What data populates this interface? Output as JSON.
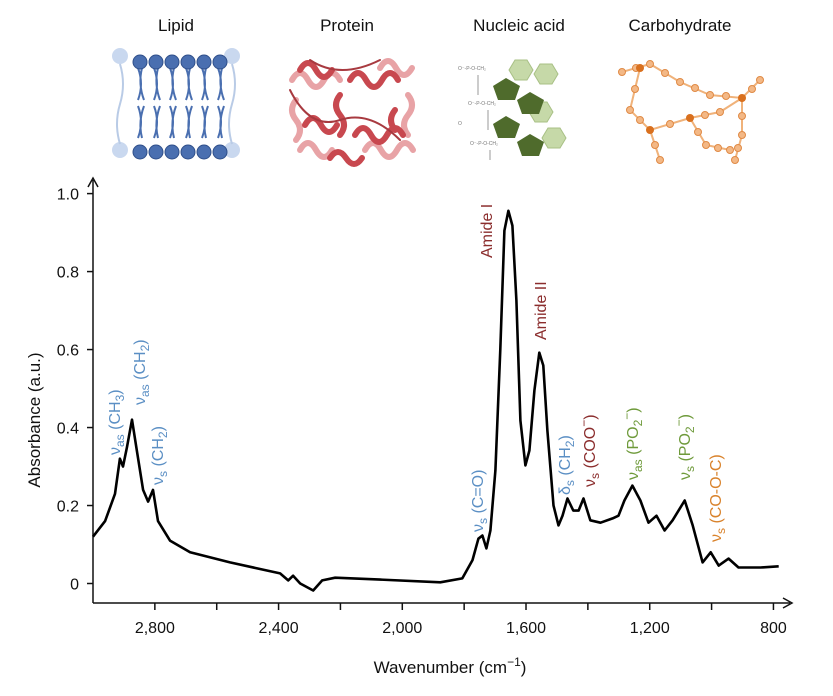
{
  "chart_data": {
    "type": "line",
    "ylabel": "Absorbance (a.u.)",
    "xlabel": {
      "parts": [
        {
          "t": "Wavenumber (cm"
        },
        {
          "t": "−1",
          "sup": true
        },
        {
          "t": ")"
        }
      ]
    },
    "groups": [
      "Lipid",
      "Protein",
      "Nucleic acid",
      "Carbohydrate"
    ],
    "color": "#000000",
    "xlim": [
      3000,
      740
    ],
    "ylim": [
      -0.05,
      1.04
    ],
    "xticks": [
      {
        "value": 2800,
        "label": "2,800"
      },
      {
        "value": 2400,
        "label": "2,400"
      },
      {
        "value": 2000,
        "label": "2,000"
      },
      {
        "value": 1600,
        "label": "1,600"
      },
      {
        "value": 1200,
        "label": "1,200"
      },
      800
    ],
    "xminorticks": [
      2600,
      2200,
      1800,
      1400,
      1000
    ],
    "yticks": [
      0,
      0.2,
      0.4,
      0.6,
      0.8,
      {
        "value": 1,
        "label": "1.0"
      }
    ],
    "x": [
      3000,
      2961,
      2929,
      2913,
      2903,
      2890,
      2874,
      2858,
      2838,
      2822,
      2806,
      2790,
      2751,
      2686,
      2557,
      2395,
      2369,
      2353,
      2330,
      2288,
      2259,
      2217,
      2071,
      1877,
      1806,
      1773,
      1754,
      1741,
      1728,
      1715,
      1699,
      1683,
      1670,
      1657,
      1644,
      1631,
      1618,
      1602,
      1589,
      1573,
      1557,
      1544,
      1531,
      1511,
      1495,
      1482,
      1466,
      1447,
      1430,
      1414,
      1392,
      1359,
      1320,
      1301,
      1282,
      1256,
      1230,
      1204,
      1178,
      1152,
      1126,
      1087,
      1061,
      1029,
      1003,
      977,
      945,
      913,
      841,
      783
    ],
    "values": [
      0.12,
      0.16,
      0.23,
      0.32,
      0.3,
      0.35,
      0.42,
      0.34,
      0.24,
      0.21,
      0.24,
      0.16,
      0.11,
      0.08,
      0.054,
      0.026,
      0.008,
      0.02,
      0,
      -0.018,
      0.008,
      0.015,
      0.01,
      0.003,
      0.013,
      0.06,
      0.115,
      0.123,
      0.09,
      0.136,
      0.29,
      0.6,
      0.905,
      0.956,
      0.918,
      0.726,
      0.418,
      0.303,
      0.341,
      0.495,
      0.592,
      0.559,
      0.392,
      0.2,
      0.149,
      0.174,
      0.218,
      0.187,
      0.187,
      0.218,
      0.162,
      0.156,
      0.167,
      0.174,
      0.213,
      0.251,
      0.213,
      0.156,
      0.174,
      0.136,
      0.162,
      0.213,
      0.149,
      0.054,
      0.08,
      0.046,
      0.064,
      0.041,
      0.041,
      0.044
    ],
    "annotations": [
      {
        "color": "#5b8fc4",
        "parts": [
          {
            "t": "ν"
          },
          {
            "t": "as",
            "sub": true
          },
          {
            "t": " (CH"
          },
          {
            "t": "3",
            "sub": true
          },
          {
            "t": ")"
          }
        ]
      },
      {
        "color": "#5b8fc4",
        "parts": [
          {
            "t": "ν"
          },
          {
            "t": "as",
            "sub": true
          },
          {
            "t": " (CH"
          },
          {
            "t": "2",
            "sub": true
          },
          {
            "t": ")"
          }
        ]
      },
      {
        "color": "#5b8fc4",
        "parts": [
          {
            "t": "ν"
          },
          {
            "t": "s",
            "sub": true
          },
          {
            "t": " (CH"
          },
          {
            "t": "2",
            "sub": true
          },
          {
            "t": ")"
          }
        ]
      },
      {
        "color": "#8b2d2d",
        "parts": [
          {
            "t": "Amide I"
          }
        ]
      },
      {
        "color": "#8b2d2d",
        "parts": [
          {
            "t": "Amide II"
          }
        ]
      },
      {
        "color": "#5b8fc4",
        "parts": [
          {
            "t": "ν"
          },
          {
            "t": "s",
            "sub": true
          },
          {
            "t": " (C=O)"
          }
        ]
      },
      {
        "color": "#5b8fc4",
        "parts": [
          {
            "t": "δ"
          },
          {
            "t": "s",
            "sub": true
          },
          {
            "t": " (CH"
          },
          {
            "t": "2",
            "sub": true
          },
          {
            "t": ")"
          }
        ]
      },
      {
        "color": "#8b2d2d",
        "parts": [
          {
            "t": "ν"
          },
          {
            "t": "s",
            "sub": true
          },
          {
            "t": " (COO"
          },
          {
            "t": "−",
            "sup": true
          },
          {
            "t": ")"
          }
        ]
      },
      {
        "color": "#6e9a3a",
        "parts": [
          {
            "t": "ν"
          },
          {
            "t": "as",
            "sub": true
          },
          {
            "t": " (PO"
          },
          {
            "t": "2",
            "sub": true
          },
          {
            "t": "−",
            "sup": true
          },
          {
            "t": ")"
          }
        ]
      },
      {
        "color": "#6e9a3a",
        "parts": [
          {
            "t": "ν"
          },
          {
            "t": "s",
            "sub": true
          },
          {
            "t": " (PO"
          },
          {
            "t": "2",
            "sub": true
          },
          {
            "t": "−",
            "sup": true
          },
          {
            "t": ")"
          }
        ]
      },
      {
        "color": "#d9822b",
        "parts": [
          {
            "t": "ν"
          },
          {
            "t": "s",
            "sub": true
          },
          {
            "t": " (CO-O-C)"
          }
        ]
      }
    ]
  }
}
